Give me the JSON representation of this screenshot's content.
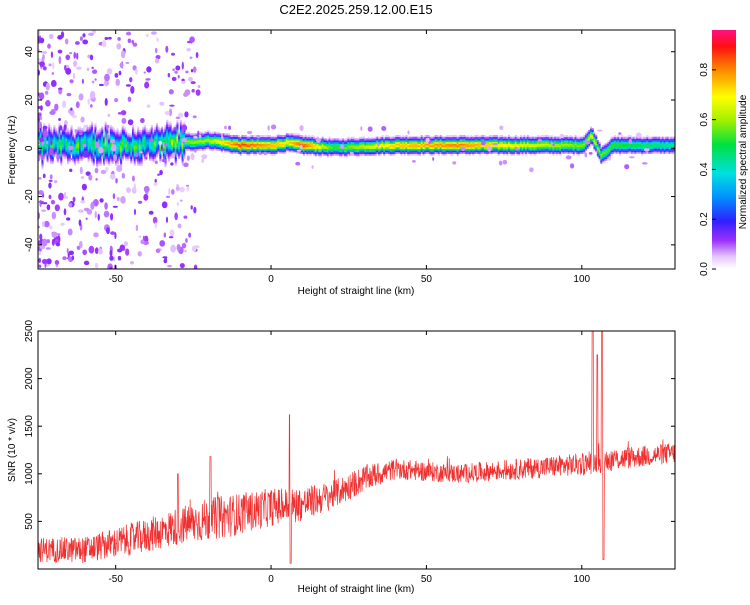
{
  "title": "C2E2.2025.259.12.00.E15",
  "chart_data": [
    {
      "type": "heatmap",
      "xlabel": "Height of straight line (km)",
      "ylabel": "Frequency (Hz)",
      "xlim": [
        -75,
        130
      ],
      "ylim": [
        -50,
        49
      ],
      "xticks": [
        -50,
        0,
        50,
        100
      ],
      "yticks": [
        -40,
        -20,
        0,
        20,
        40
      ],
      "colorbar": {
        "label": "Normalized spectral amplitude",
        "range": [
          0,
          0.96
        ],
        "ticks": [
          "0.0",
          "0.2",
          "0.4",
          "0.6",
          "0.8"
        ],
        "tick_values": [
          0.0,
          0.2,
          0.4,
          0.6,
          0.8
        ]
      },
      "ridge": {
        "description_points_height_km": [
          -75,
          -60,
          -40,
          -30,
          -20,
          -10,
          0,
          5,
          10,
          20,
          40,
          60,
          80,
          100,
          103,
          106,
          110,
          130
        ],
        "center_freq_hz": [
          1,
          1,
          1,
          2,
          3,
          1,
          1,
          2,
          1,
          0,
          1,
          1,
          1,
          1,
          5,
          -3,
          1,
          1
        ],
        "peak_amplitude": [
          0.5,
          0.55,
          0.5,
          0.6,
          0.65,
          0.9,
          0.8,
          0.75,
          0.9,
          0.55,
          0.78,
          0.85,
          0.7,
          0.6,
          0.7,
          0.6,
          0.55,
          0.45
        ]
      }
    },
    {
      "type": "line",
      "xlabel": "Height of straight line (km)",
      "ylabel": "SNR (10 * v/v)",
      "xlim": [
        -75,
        130
      ],
      "ylim": [
        0,
        2500
      ],
      "xticks": [
        -50,
        0,
        50,
        100
      ],
      "yticks": [
        500,
        1000,
        1500,
        2000,
        2500
      ],
      "color": "#f03030",
      "envelope": {
        "x": [
          -75,
          -60,
          -40,
          -30,
          -20,
          -10,
          0,
          10,
          20,
          30,
          40,
          60,
          80,
          100,
          110,
          130
        ],
        "mean": [
          200,
          200,
          350,
          450,
          520,
          580,
          650,
          680,
          780,
          950,
          1050,
          1000,
          1050,
          1100,
          1150,
          1220
        ],
        "spread": [
          130,
          140,
          180,
          200,
          230,
          220,
          200,
          180,
          150,
          140,
          110,
          100,
          110,
          120,
          120,
          110
        ]
      },
      "spikes": [
        {
          "x": -19.5,
          "y": 1180
        },
        {
          "x": -30,
          "y": 1000
        },
        {
          "x": 6,
          "y": 1620
        },
        {
          "x": 6.3,
          "y": 60
        },
        {
          "x": 103.5,
          "y": 2500
        },
        {
          "x": 105,
          "y": 2250
        },
        {
          "x": 106.5,
          "y": 2520
        },
        {
          "x": 107,
          "y": 100
        }
      ]
    }
  ]
}
